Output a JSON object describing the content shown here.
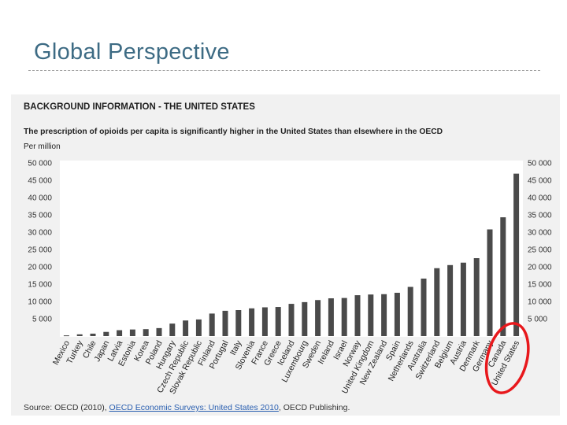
{
  "slide": {
    "title": "Global Perspective"
  },
  "source": {
    "prefix": "Source: OECD (2010), ",
    "link_text": "OECD Economic Surveys: United States 2010",
    "suffix": ", OECD Publishing."
  },
  "colors": {
    "title": "#3d6b84",
    "bar": "#4a4a4a",
    "highlight": "#e8181c",
    "panel": "#f1f1f1",
    "plot_bg": "#ffffff"
  },
  "chart_data": {
    "type": "bar",
    "header": "BACKGROUND INFORMATION - THE UNITED STATES",
    "title": "The prescription of opioids per capita is significantly higher in the United States than elsewhere in the OECD",
    "ylabel": "Per million",
    "ylim": [
      0,
      50000
    ],
    "yticks": [
      5000,
      10000,
      15000,
      20000,
      25000,
      30000,
      35000,
      40000,
      45000,
      50000
    ],
    "ytick_labels": [
      "5 000",
      "10 000",
      "15 000",
      "20 000",
      "25 000",
      "30 000",
      "35 000",
      "40 000",
      "45 000",
      "50 000"
    ],
    "grid": false,
    "categories": [
      "Mexico",
      "Turkey",
      "Chile",
      "Japan",
      "Latvia",
      "Estonia",
      "Korea",
      "Poland",
      "Hungary",
      "Czech Republic",
      "Slovak Republic",
      "Finland",
      "Portugal",
      "Italy",
      "Slovenia",
      "France",
      "Greece",
      "Iceland",
      "Luxembourg",
      "Sweden",
      "Ireland",
      "Israel",
      "Norway",
      "United Kingdom",
      "New Zealand",
      "Spain",
      "Netherlands",
      "Australia",
      "Switzerland",
      "Belgium",
      "Austria",
      "Denmark",
      "Germany",
      "Canada",
      "United States"
    ],
    "values": [
      200,
      500,
      700,
      1200,
      1700,
      1900,
      2000,
      2300,
      3600,
      4500,
      4800,
      6500,
      7300,
      7500,
      8000,
      8300,
      8400,
      9300,
      9800,
      10400,
      10900,
      11000,
      11800,
      12000,
      12100,
      12500,
      14200,
      16600,
      19600,
      20500,
      21200,
      22500,
      30800,
      34300,
      46900
    ],
    "highlighted": [
      "Canada",
      "United States"
    ]
  }
}
